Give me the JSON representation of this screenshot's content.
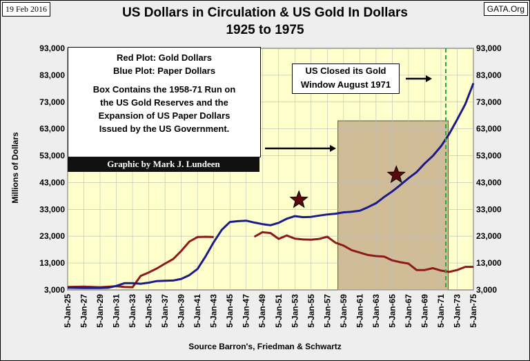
{
  "header": {
    "date": "19 Feb 2016",
    "source_site": "GATA.Org",
    "title_line1": "US Dollars in Circulation & US Gold In Dollars",
    "title_line2": "1925 to 1975"
  },
  "legend_box": {
    "line1": "Red Plot: Gold Dollars",
    "line2": "Blue Plot: Paper Dollars",
    "line3": "Box Contains the 1958-71 Run on",
    "line4": "the US Gold Reserves and the",
    "line5": "Expansion of US Paper Dollars",
    "line6": "Issued by the US Government.",
    "credit": "Graphic by Mark J. Lundeen"
  },
  "window_note": {
    "line1": "US Closed its Gold",
    "line2": "Window August 1971"
  },
  "colors": {
    "plot_bg": "#ffffcc",
    "gold_series": "#8b1a1a",
    "paper_series": "#1a1a8c",
    "box_fill": "#c8b08c",
    "dashed_line": "#22aa44",
    "star": "#5a0a0a"
  },
  "chart_data": {
    "type": "line",
    "title": "US Dollars in Circulation & US Gold In Dollars 1925 to 1975",
    "xlabel": "Source Barron's, Friedman & Schwartz",
    "ylabel": "Millions of Dollars",
    "ylim": [
      3000,
      93000
    ],
    "y_ticks": [
      "3,000",
      "13,000",
      "23,000",
      "33,000",
      "43,000",
      "53,000",
      "63,000",
      "73,000",
      "83,000",
      "93,000"
    ],
    "x_ticks": [
      "5-Jan-25",
      "5-Jan-27",
      "5-Jan-29",
      "5-Jan-31",
      "5-Jan-33",
      "5-Jan-35",
      "5-Jan-37",
      "5-Jan-39",
      "5-Jan-41",
      "5-Jan-43",
      "5-Jan-45",
      "5-Jan-47",
      "5-Jan-49",
      "5-Jan-51",
      "5-Jan-53",
      "5-Jan-55",
      "5-Jan-57",
      "5-Jan-59",
      "5-Jan-61",
      "5-Jan-63",
      "5-Jan-65",
      "5-Jan-67",
      "5-Jan-69",
      "5-Jan-71",
      "5-Jan-73",
      "5-Jan-75"
    ],
    "xlim": [
      1925,
      1975
    ],
    "grid": true,
    "series": [
      {
        "name": "Red Plot: Gold Dollars",
        "x": [
          1925,
          1927,
          1929,
          1931,
          1932,
          1933,
          1934,
          1935,
          1936,
          1937,
          1938,
          1939,
          1940,
          1941,
          1942,
          1943
        ],
        "y": [
          4100,
          4200,
          4000,
          4400,
          4100,
          4000,
          8200,
          9500,
          11000,
          12800,
          14500,
          17500,
          21000,
          22700,
          22800,
          22700
        ]
      },
      {
        "name": "Red Plot: Gold Dollars",
        "x": [
          1948,
          1949,
          1950,
          1951,
          1952,
          1953,
          1954,
          1955,
          1956,
          1957,
          1958,
          1959,
          1960,
          1961,
          1962,
          1963,
          1964,
          1965,
          1966,
          1967,
          1968,
          1969,
          1970,
          1971,
          1972,
          1973,
          1974,
          1975
        ],
        "y": [
          22800,
          24500,
          24200,
          22000,
          23300,
          22100,
          21800,
          21700,
          22000,
          22800,
          20600,
          19500,
          17800,
          16900,
          16000,
          15600,
          15400,
          14000,
          13300,
          12800,
          10400,
          10400,
          11100,
          10200,
          9700,
          10400,
          11600,
          11600
        ]
      },
      {
        "name": "Blue Plot: Paper Dollars",
        "x": [
          1925,
          1927,
          1929,
          1930,
          1931,
          1932,
          1933,
          1934,
          1935,
          1936,
          1937,
          1938,
          1939,
          1940,
          1941,
          1942,
          1943,
          1944,
          1945,
          1946,
          1947,
          1948,
          1949,
          1950,
          1951,
          1952,
          1953,
          1954,
          1955,
          1956,
          1957,
          1958,
          1959,
          1960,
          1961,
          1962,
          1963,
          1964,
          1965,
          1966,
          1967,
          1968,
          1969,
          1970,
          1971,
          1972,
          1973,
          1974,
          1975
        ],
        "y": [
          3800,
          3700,
          3700,
          3800,
          4500,
          5500,
          5500,
          5300,
          5700,
          6300,
          6400,
          6500,
          7100,
          8500,
          10800,
          15500,
          20800,
          25400,
          28300,
          28600,
          28800,
          28100,
          27500,
          27100,
          28000,
          29500,
          30500,
          30100,
          30200,
          30700,
          31100,
          31400,
          31900,
          32100,
          32500,
          33800,
          35300,
          37600,
          39700,
          42100,
          44600,
          46900,
          50100,
          52900,
          56500,
          61000,
          66500,
          72200,
          80000
        ]
      }
    ],
    "annotations": [
      "Red Plot: Gold Dollars",
      "Blue Plot: Paper Dollars",
      "Box Contains the 1958-71 Run on the US Gold Reserves and the Expansion of US Paper Dollars Issued by the US Government.",
      "US Closed its Gold Window August 1971"
    ],
    "highlight_box": {
      "x_start": 1958.3,
      "x_end": 1971.9,
      "y_top": 66000
    },
    "dashed_marker_x": 1971.6,
    "stars": [
      {
        "x": 1953.5,
        "y": 36500
      },
      {
        "x": 1965.5,
        "y": 45800
      }
    ]
  }
}
